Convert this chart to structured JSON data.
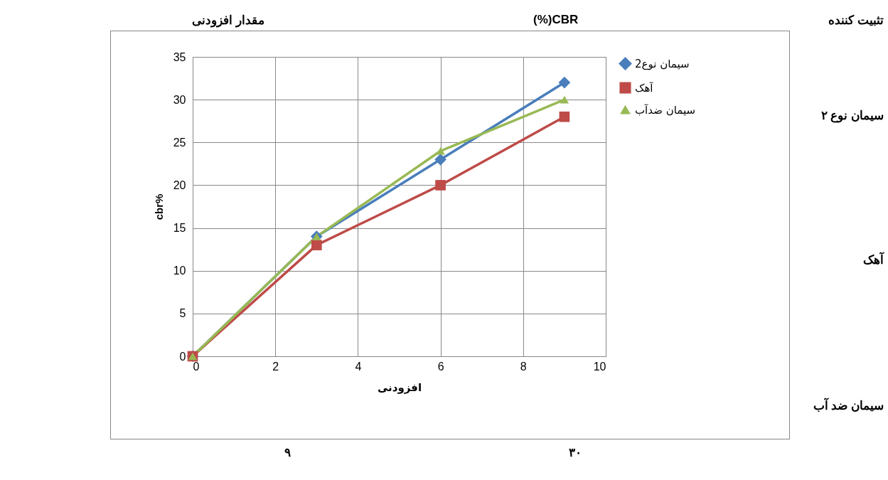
{
  "chart_data": {
    "type": "line",
    "xlabel": "افزودنی",
    "ylabel": "cbr%",
    "x": [
      0,
      3,
      6,
      9
    ],
    "series": [
      {
        "name": "سیمان نوع2",
        "color": "#4a7ebb",
        "marker": "diamond",
        "values": [
          0,
          14,
          23,
          32
        ]
      },
      {
        "name": "آهک",
        "color": "#be4b48",
        "marker": "square",
        "values": [
          0,
          13,
          20,
          28
        ]
      },
      {
        "name": "سیمان ضدآب",
        "color": "#98b954",
        "marker": "triangle",
        "values": [
          0,
          14,
          24,
          30
        ]
      }
    ],
    "xlim": [
      0,
      10
    ],
    "xticks": [
      0,
      2,
      4,
      6,
      8,
      10
    ],
    "ylim": [
      0,
      35
    ],
    "yticks": [
      0,
      5,
      10,
      15,
      20,
      25,
      30,
      35
    ],
    "grid": true,
    "legend": "right",
    "line_style": "solid",
    "annotations": [
      "تثبیت کننده",
      "CBR(%)",
      "مقدار افزودنی",
      "سیمان نوع ۲",
      "آهک",
      "سیمان ضد آب",
      "۳۰",
      "۹"
    ]
  }
}
